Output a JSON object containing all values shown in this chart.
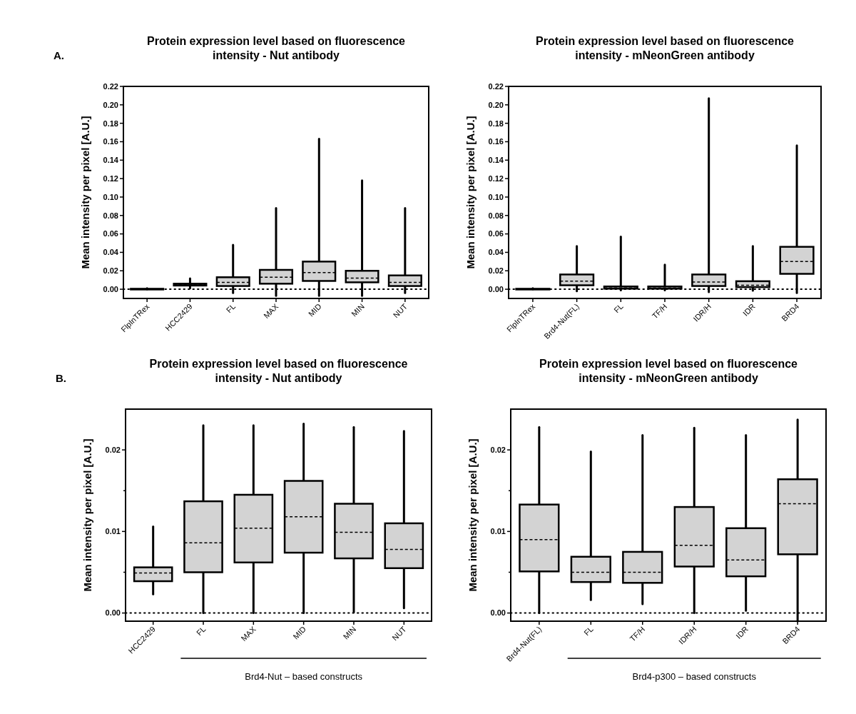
{
  "chart_data": [
    {
      "type": "box",
      "title": "Protein expression level based on fluorescence intensity - Nut antibody",
      "ylabel": "Mean intensity per pixel [A.U.]",
      "categories": [
        "FlpInTRex",
        "HCC2429",
        "FL",
        "MAX",
        "MID",
        "MIN",
        "NUT"
      ],
      "ylim": [
        -0.01,
        0.22
      ],
      "yticks": [
        {
          "value": 0,
          "label": "0.00"
        },
        {
          "value": 0.02,
          "label": "0.02"
        },
        {
          "value": 0.04,
          "label": "0.04"
        },
        {
          "value": 0.06,
          "label": "0.06"
        },
        {
          "value": 0.08,
          "label": "0.08"
        },
        {
          "value": 0.1,
          "label": "0.10"
        },
        {
          "value": 0.12,
          "label": "0.12"
        },
        {
          "value": 0.14,
          "label": "0.14"
        },
        {
          "value": 0.16,
          "label": "0.16"
        },
        {
          "value": 0.18,
          "label": "0.18"
        },
        {
          "value": 0.2,
          "label": "0.20"
        },
        {
          "value": 0.22,
          "label": "0.22"
        }
      ],
      "grid": false,
      "ref_lines": [
        {
          "axis": "y",
          "value": 0,
          "line_style": "dotted"
        }
      ],
      "annotations": [
        "A."
      ],
      "series": [
        {
          "color": "#d3d3d3",
          "boxes": [
            {
              "low": 0,
              "q1": 0,
              "median": 0,
              "q3": 0.0005,
              "high": 0.001
            },
            {
              "low": 0.001,
              "q1": 0.004,
              "median": 0.005,
              "q3": 0.006,
              "high": 0.0116
            },
            {
              "low": -0.004,
              "q1": 0.0035,
              "median": 0.0075,
              "q3": 0.013,
              "high": 0.048
            },
            {
              "low": -0.007,
              "q1": 0.006,
              "median": 0.013,
              "q3": 0.021,
              "high": 0.088
            },
            {
              "low": -0.007,
              "q1": 0.009,
              "median": 0.018,
              "q3": 0.03,
              "high": 0.163
            },
            {
              "low": -0.007,
              "q1": 0.0075,
              "median": 0.012,
              "q3": 0.02,
              "high": 0.118
            },
            {
              "low": -0.004,
              "q1": 0.0035,
              "median": 0.0075,
              "q3": 0.015,
              "high": 0.088
            }
          ]
        }
      ]
    },
    {
      "type": "box",
      "title": "Protein expression level based on fluorescence intensity - mNeonGreen antibody",
      "ylabel": "Mean intensity per pixel [A.U.]",
      "categories": [
        "FlpInTRex",
        "Brd4-Nut(FL)",
        "FL",
        "TF/H",
        "IDR/H",
        "IDR",
        "BRD4"
      ],
      "ylim": [
        -0.01,
        0.22
      ],
      "yticks": [
        {
          "value": 0,
          "label": "0.00"
        },
        {
          "value": 0.02,
          "label": "0.02"
        },
        {
          "value": 0.04,
          "label": "0.04"
        },
        {
          "value": 0.06,
          "label": "0.06"
        },
        {
          "value": 0.08,
          "label": "0.08"
        },
        {
          "value": 0.1,
          "label": "0.10"
        },
        {
          "value": 0.12,
          "label": "0.12"
        },
        {
          "value": 0.14,
          "label": "0.14"
        },
        {
          "value": 0.16,
          "label": "0.16"
        },
        {
          "value": 0.18,
          "label": "0.18"
        },
        {
          "value": 0.2,
          "label": "0.20"
        },
        {
          "value": 0.22,
          "label": "0.22"
        }
      ],
      "grid": false,
      "ref_lines": [
        {
          "axis": "y",
          "value": 0,
          "line_style": "dotted"
        }
      ],
      "series": [
        {
          "color": "#d3d3d3",
          "boxes": [
            {
              "low": 0,
              "q1": 0,
              "median": 0,
              "q3": 0.0005,
              "high": 0.001
            },
            {
              "low": -0.002,
              "q1": 0.0043,
              "median": 0.0087,
              "q3": 0.016,
              "high": 0.0468
            },
            {
              "low": -0.001,
              "q1": 0.0006,
              "median": 0.0014,
              "q3": 0.003,
              "high": 0.057
            },
            {
              "low": -0.001,
              "q1": 0.0006,
              "median": 0.0014,
              "q3": 0.003,
              "high": 0.0266
            },
            {
              "low": -0.003,
              "q1": 0.0035,
              "median": 0.0078,
              "q3": 0.016,
              "high": 0.207
            },
            {
              "low": -0.0015,
              "q1": 0.0023,
              "median": 0.0043,
              "q3": 0.0087,
              "high": 0.0468
            },
            {
              "low": -0.004,
              "q1": 0.0167,
              "median": 0.03,
              "q3": 0.046,
              "high": 0.156
            }
          ]
        }
      ]
    },
    {
      "type": "box",
      "title": "Protein expression level based on fluorescence intensity - Nut antibody",
      "ylabel": "Mean intensity per pixel [A.U.]",
      "categories": [
        "HCC2429",
        "FL",
        "MAX",
        "MID",
        "MIN",
        "NUT"
      ],
      "ylim": [
        -0.001,
        0.025
      ],
      "yticks": [
        {
          "value": 0,
          "label": "0.00"
        },
        {
          "value": 0.005,
          "label": null
        },
        {
          "value": 0.01,
          "label": "0.01"
        },
        {
          "value": 0.015,
          "label": null
        },
        {
          "value": 0.02,
          "label": "0.02"
        }
      ],
      "grid": false,
      "ref_lines": [
        {
          "axis": "y",
          "value": 0,
          "line_style": "dotted"
        }
      ],
      "annotations": [
        "B.",
        "Brd4-Nut – based constructs"
      ],
      "series": [
        {
          "color": "#d3d3d3",
          "boxes": [
            {
              "low": 0.0023,
              "q1": 0.0039,
              "median": 0.0049,
              "q3": 0.0056,
              "high": 0.0106
            },
            {
              "low": 0,
              "q1": 0.005,
              "median": 0.0086,
              "q3": 0.0137,
              "high": 0.023
            },
            {
              "low": 0,
              "q1": 0.0062,
              "median": 0.0104,
              "q3": 0.0145,
              "high": 0.023
            },
            {
              "low": 0,
              "q1": 0.0074,
              "median": 0.0118,
              "q3": 0.0162,
              "high": 0.0232
            },
            {
              "low": 0.0001,
              "q1": 0.0067,
              "median": 0.0099,
              "q3": 0.0134,
              "high": 0.0228
            },
            {
              "low": 0.0006,
              "q1": 0.0055,
              "median": 0.0078,
              "q3": 0.011,
              "high": 0.0223
            }
          ]
        }
      ]
    },
    {
      "type": "box",
      "title": "Protein expression level based on fluorescence intensity - mNeonGreen antibody",
      "ylabel": "Mean intensity per pixel [A.U.]",
      "categories": [
        "Brd4-Nut(FL)",
        "FL",
        "TF/H",
        "IDR/H",
        "IDR",
        "BRD4"
      ],
      "ylim": [
        -0.001,
        0.025
      ],
      "yticks": [
        {
          "value": 0,
          "label": "0.00"
        },
        {
          "value": 0.005,
          "label": null
        },
        {
          "value": 0.01,
          "label": "0.01"
        },
        {
          "value": 0.015,
          "label": null
        },
        {
          "value": 0.02,
          "label": "0.02"
        }
      ],
      "grid": false,
      "ref_lines": [
        {
          "axis": "y",
          "value": 0,
          "line_style": "dotted"
        }
      ],
      "annotations": [
        "Brd4-p300 – based constructs"
      ],
      "series": [
        {
          "color": "#d3d3d3",
          "boxes": [
            {
              "low": 0,
              "q1": 0.0051,
              "median": 0.009,
              "q3": 0.0133,
              "high": 0.0228
            },
            {
              "low": 0.0016,
              "q1": 0.0038,
              "median": 0.005,
              "q3": 0.0069,
              "high": 0.0198
            },
            {
              "low": 0.0011,
              "q1": 0.0037,
              "median": 0.005,
              "q3": 0.0075,
              "high": 0.0218
            },
            {
              "low": 0,
              "q1": 0.0057,
              "median": 0.0083,
              "q3": 0.013,
              "high": 0.0227
            },
            {
              "low": 0.0003,
              "q1": 0.0045,
              "median": 0.0065,
              "q3": 0.0104,
              "high": 0.0218
            },
            {
              "low": -0.001,
              "q1": 0.0072,
              "median": 0.0134,
              "q3": 0.0164,
              "high": 0.0237
            }
          ]
        }
      ]
    }
  ]
}
